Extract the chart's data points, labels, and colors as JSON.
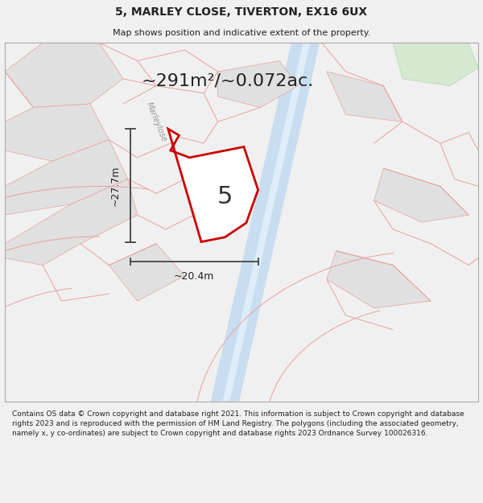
{
  "title": "5, MARLEY CLOSE, TIVERTON, EX16 6UX",
  "subtitle": "Map shows position and indicative extent of the property.",
  "area_text": "~291m²/~0.072ac.",
  "label_5": "5",
  "dim_width": "~20.4m",
  "dim_height": "~27.7m",
  "road_label": "Marleylose",
  "footer": "Contains OS data © Crown copyright and database right 2021. This information is subject to Crown copyright and database rights 2023 and is reproduced with the permission of HM Land Registry. The polygons (including the associated geometry, namely x, y co-ordinates) are subject to Crown copyright and database rights 2023 Ordnance Survey 100026316.",
  "bg_color": "#f0f0f0",
  "map_bg": "#ffffff",
  "plot_color": "#cc0000",
  "plot_fill": "#ffffff",
  "road_strip_color1": "#c8ddf0",
  "road_strip_color2": "#ddeef8",
  "cad_line_color": "#e8a0a0",
  "gray_fill": "#e0e0e0",
  "green_fill": "#d5e8d0",
  "dim_line_color": "#444444",
  "text_color": "#222222",
  "title_fontsize": 10,
  "subtitle_fontsize": 8,
  "area_fontsize": 16,
  "label5_fontsize": 22,
  "dim_fontsize": 9,
  "road_label_fontsize": 7,
  "footer_fontsize": 6.5
}
